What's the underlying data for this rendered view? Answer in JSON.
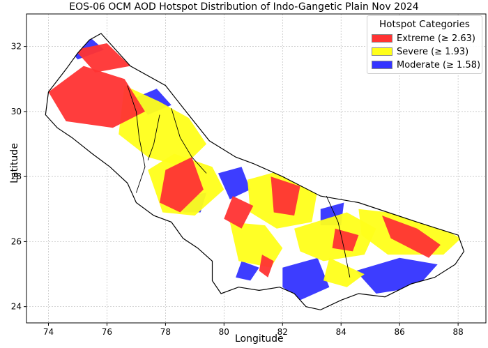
{
  "title": "EOS-06 OCM AOD Hotspot Distribution of Indo-Gangetic Plain Nov 2024",
  "xlabel": "Longitude",
  "ylabel": "Latitude",
  "legend": {
    "title": "Hotspot Categories",
    "items": [
      {
        "label": "Extreme (≥ 2.63)",
        "color": "#ff3333"
      },
      {
        "label": "Severe (≥ 1.93)",
        "color": "#ffff1a"
      },
      {
        "label": "Moderate (≥ 1.58)",
        "color": "#3333ff"
      }
    ]
  },
  "chart_data": {
    "type": "map",
    "xlim": [
      73.25,
      88.95
    ],
    "ylim": [
      23.5,
      33.0
    ],
    "x_ticks": [
      74,
      76,
      78,
      80,
      82,
      84,
      86,
      88
    ],
    "y_ticks": [
      24,
      26,
      28,
      30,
      32
    ],
    "grid": true,
    "legend_position": "top-right",
    "regions": [
      {
        "category": "Extreme (≥ 2.63)",
        "color": "#ff3333",
        "polys": [
          [
            [
              74.0,
              30.6
            ],
            [
              75.2,
              31.4
            ],
            [
              76.6,
              31.0
            ],
            [
              77.3,
              30.0
            ],
            [
              76.2,
              29.5
            ],
            [
              74.6,
              29.7
            ]
          ],
          [
            [
              74.9,
              31.9
            ],
            [
              76.0,
              32.1
            ],
            [
              76.8,
              31.4
            ],
            [
              75.6,
              31.2
            ]
          ],
          [
            [
              78.0,
              28.2
            ],
            [
              78.9,
              28.6
            ],
            [
              79.3,
              27.6
            ],
            [
              78.5,
              26.9
            ],
            [
              77.8,
              27.2
            ]
          ],
          [
            [
              81.6,
              28.0
            ],
            [
              82.6,
              27.7
            ],
            [
              82.4,
              26.8
            ],
            [
              81.7,
              26.9
            ]
          ],
          [
            [
              80.3,
              27.4
            ],
            [
              81.0,
              27.1
            ],
            [
              80.6,
              26.4
            ],
            [
              80.0,
              26.7
            ]
          ],
          [
            [
              81.3,
              25.6
            ],
            [
              81.7,
              25.4
            ],
            [
              81.5,
              24.9
            ],
            [
              81.2,
              25.1
            ]
          ],
          [
            [
              85.4,
              26.8
            ],
            [
              86.6,
              26.4
            ],
            [
              87.4,
              25.9
            ],
            [
              87.0,
              25.5
            ],
            [
              85.7,
              26.1
            ]
          ],
          [
            [
              83.8,
              26.4
            ],
            [
              84.6,
              26.2
            ],
            [
              84.4,
              25.7
            ],
            [
              83.7,
              25.8
            ]
          ]
        ]
      },
      {
        "category": "Severe (≥ 1.93)",
        "color": "#ffff1a",
        "polys": [
          [
            [
              76.6,
              30.8
            ],
            [
              77.8,
              30.3
            ],
            [
              78.8,
              29.8
            ],
            [
              79.4,
              29.0
            ],
            [
              78.6,
              28.3
            ],
            [
              77.4,
              28.6
            ],
            [
              76.4,
              29.3
            ]
          ],
          [
            [
              77.4,
              28.2
            ],
            [
              78.3,
              28.7
            ],
            [
              79.6,
              28.3
            ],
            [
              80.0,
              27.6
            ],
            [
              79.0,
              26.8
            ],
            [
              77.9,
              26.9
            ]
          ],
          [
            [
              80.8,
              27.9
            ],
            [
              82.0,
              28.2
            ],
            [
              83.2,
              27.6
            ],
            [
              83.0,
              26.6
            ],
            [
              81.8,
              26.4
            ],
            [
              80.9,
              26.9
            ]
          ],
          [
            [
              80.2,
              26.6
            ],
            [
              81.4,
              26.5
            ],
            [
              82.0,
              25.8
            ],
            [
              81.6,
              25.2
            ],
            [
              80.5,
              25.4
            ]
          ],
          [
            [
              82.4,
              26.4
            ],
            [
              84.2,
              26.9
            ],
            [
              85.2,
              26.4
            ],
            [
              84.8,
              25.6
            ],
            [
              83.4,
              25.4
            ],
            [
              82.6,
              25.7
            ]
          ],
          [
            [
              84.6,
              27.0
            ],
            [
              86.6,
              26.8
            ],
            [
              88.1,
              26.1
            ],
            [
              87.5,
              25.6
            ],
            [
              85.6,
              25.6
            ],
            [
              84.7,
              26.2
            ]
          ],
          [
            [
              83.6,
              25.5
            ],
            [
              84.8,
              25.0
            ],
            [
              84.2,
              24.6
            ],
            [
              83.4,
              24.8
            ]
          ]
        ]
      },
      {
        "category": "Moderate (≥ 1.58)",
        "color": "#3333ff",
        "polys": [
          [
            [
              74.6,
              32.0
            ],
            [
              75.4,
              32.3
            ],
            [
              75.9,
              31.9
            ],
            [
              75.0,
              31.6
            ]
          ],
          [
            [
              76.9,
              30.4
            ],
            [
              77.7,
              30.7
            ],
            [
              78.2,
              30.2
            ],
            [
              77.4,
              29.9
            ]
          ],
          [
            [
              78.6,
              27.4
            ],
            [
              79.4,
              27.5
            ],
            [
              79.2,
              26.9
            ],
            [
              78.6,
              26.9
            ]
          ],
          [
            [
              79.8,
              28.1
            ],
            [
              80.6,
              28.3
            ],
            [
              80.9,
              27.6
            ],
            [
              80.2,
              27.3
            ]
          ],
          [
            [
              80.6,
              25.4
            ],
            [
              81.2,
              25.2
            ],
            [
              80.9,
              24.8
            ],
            [
              80.4,
              24.9
            ]
          ],
          [
            [
              82.0,
              25.2
            ],
            [
              83.2,
              25.5
            ],
            [
              83.6,
              24.6
            ],
            [
              82.6,
              24.2
            ],
            [
              82.0,
              24.6
            ]
          ],
          [
            [
              84.5,
              25.1
            ],
            [
              86.0,
              25.5
            ],
            [
              87.3,
              25.3
            ],
            [
              86.6,
              24.6
            ],
            [
              85.2,
              24.4
            ]
          ],
          [
            [
              83.3,
              27.0
            ],
            [
              84.1,
              27.2
            ],
            [
              84.0,
              26.5
            ],
            [
              83.3,
              26.5
            ]
          ]
        ]
      }
    ]
  },
  "boundary": {
    "outline": [
      [
        75.8,
        32.4
      ],
      [
        76.8,
        31.4
      ],
      [
        78.0,
        30.8
      ],
      [
        78.7,
        30.0
      ],
      [
        79.5,
        29.1
      ],
      [
        80.4,
        28.6
      ],
      [
        81.0,
        28.4
      ],
      [
        82.0,
        28.0
      ],
      [
        83.3,
        27.4
      ],
      [
        84.6,
        27.2
      ],
      [
        85.6,
        26.9
      ],
      [
        86.6,
        26.6
      ],
      [
        87.3,
        26.4
      ],
      [
        88.0,
        26.2
      ],
      [
        88.2,
        25.7
      ],
      [
        87.9,
        25.3
      ],
      [
        87.2,
        24.9
      ],
      [
        86.4,
        24.7
      ],
      [
        85.5,
        24.3
      ],
      [
        84.6,
        24.4
      ],
      [
        84.0,
        24.2
      ],
      [
        83.3,
        23.9
      ],
      [
        82.8,
        24.0
      ],
      [
        82.4,
        24.4
      ],
      [
        81.9,
        24.6
      ],
      [
        81.2,
        24.5
      ],
      [
        80.5,
        24.6
      ],
      [
        79.9,
        24.4
      ],
      [
        79.6,
        24.8
      ],
      [
        79.6,
        25.4
      ],
      [
        79.1,
        25.8
      ],
      [
        78.6,
        26.1
      ],
      [
        78.2,
        26.6
      ],
      [
        77.6,
        26.8
      ],
      [
        77.0,
        27.2
      ],
      [
        76.7,
        27.8
      ],
      [
        76.1,
        28.3
      ],
      [
        75.5,
        28.7
      ],
      [
        74.8,
        29.2
      ],
      [
        74.3,
        29.5
      ],
      [
        73.9,
        29.9
      ],
      [
        74.0,
        30.6
      ],
      [
        74.6,
        31.3
      ],
      [
        75.0,
        31.8
      ],
      [
        75.4,
        32.2
      ]
    ],
    "internal": [
      [
        [
          76.7,
          30.8
        ],
        [
          77.0,
          30.0
        ],
        [
          77.1,
          29.2
        ],
        [
          77.3,
          28.3
        ],
        [
          77.0,
          27.5
        ]
      ],
      [
        [
          78.2,
          30.1
        ],
        [
          78.5,
          29.2
        ],
        [
          78.9,
          28.6
        ],
        [
          79.4,
          28.1
        ]
      ],
      [
        [
          83.5,
          27.4
        ],
        [
          83.9,
          26.6
        ],
        [
          84.1,
          25.8
        ],
        [
          84.3,
          24.9
        ]
      ],
      [
        [
          77.8,
          29.9
        ],
        [
          77.6,
          29.0
        ],
        [
          77.4,
          28.5
        ]
      ]
    ]
  }
}
